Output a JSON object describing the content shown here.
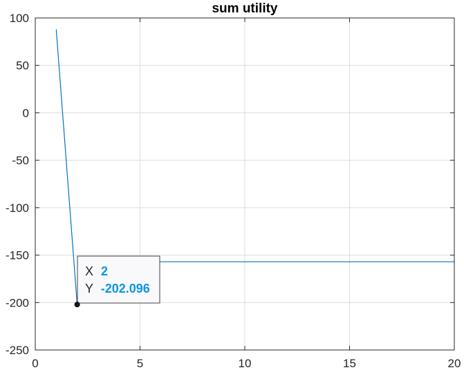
{
  "chart_data": {
    "type": "line",
    "title": "sum utility",
    "xlabel": "",
    "ylabel": "",
    "xlim": [
      0,
      20
    ],
    "ylim": [
      -250,
      100
    ],
    "xticks": [
      0,
      5,
      10,
      15,
      20
    ],
    "yticks": [
      100,
      50,
      0,
      -50,
      -100,
      -150,
      -200,
      -250
    ],
    "grid": true,
    "series": [
      {
        "color": "#0072bd",
        "x": [
          1,
          2,
          3,
          4,
          5,
          6,
          7,
          8,
          9,
          10,
          11,
          12,
          13,
          14,
          15,
          16,
          17,
          18,
          19,
          20
        ],
        "values": [
          88,
          -202.096,
          -157,
          -157,
          -157,
          -157,
          -157,
          -157,
          -157,
          -157,
          -157,
          -157,
          -157,
          -157,
          -157,
          -157,
          -157,
          -157,
          -157,
          -157
        ]
      }
    ],
    "datatip": {
      "x_label": "X",
      "x_value": "2",
      "y_label": "Y",
      "y_value": "-202.096",
      "x": 2,
      "y": -202.096
    }
  }
}
